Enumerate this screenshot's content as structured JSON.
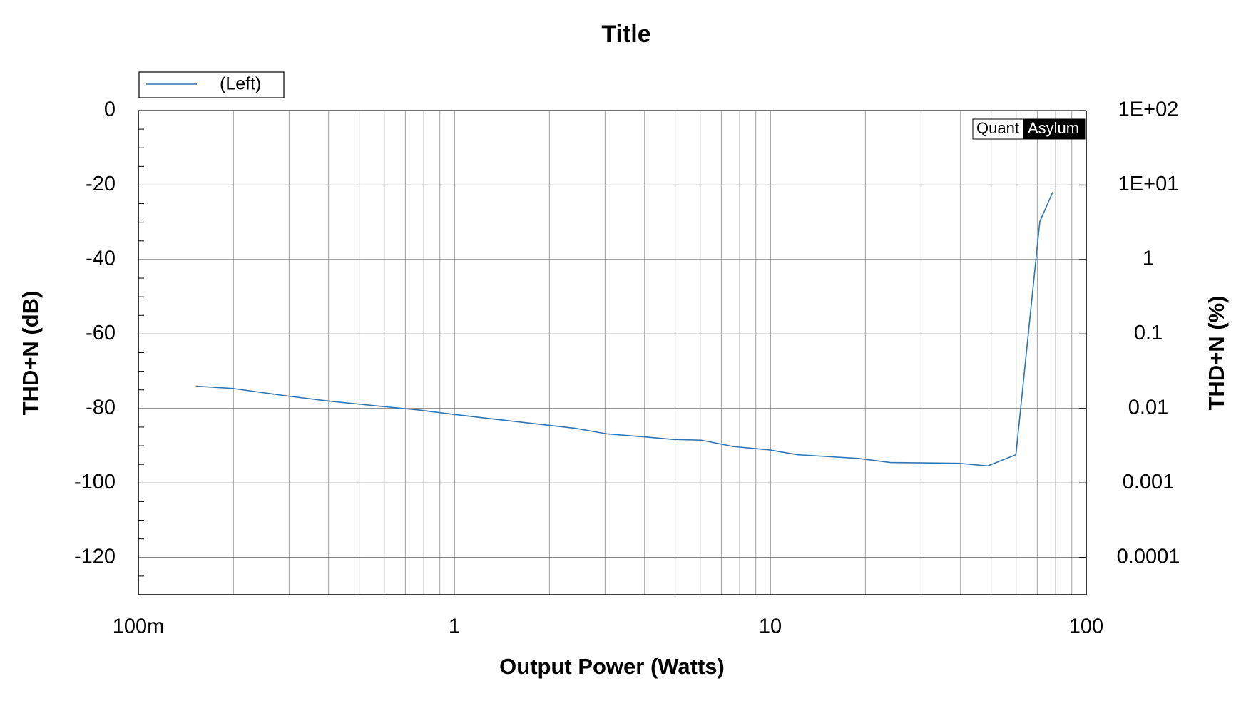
{
  "chart_data": {
    "type": "line",
    "title": "Title",
    "xlabel": "Output Power (Watts)",
    "ylabel": "THD+N (dB)",
    "y2label": "THD+N (%)",
    "xscale": "log",
    "y2scale": "log",
    "grid": true,
    "xlim": [
      0.1,
      100
    ],
    "xticks": [
      {
        "value": 0.1,
        "label": "100m"
      },
      1,
      10,
      100
    ],
    "x_minor_ticks": [
      0.2,
      0.3,
      0.4,
      0.5,
      0.6,
      0.7,
      0.8,
      0.9,
      2,
      3,
      4,
      5,
      6,
      7,
      8,
      9,
      20,
      30,
      40,
      50,
      60,
      70,
      80,
      90
    ],
    "ylim": [
      -130,
      0
    ],
    "yticks": [
      0,
      -20,
      -40,
      -60,
      -80,
      -100,
      -120
    ],
    "y_minor_ticks": [
      -5,
      -10,
      -15,
      -25,
      -30,
      -35,
      -45,
      -50,
      -55,
      -65,
      -70,
      -75,
      -85,
      -90,
      -95,
      -105,
      -110,
      -115,
      -125
    ],
    "y2lim": [
      3.16e-05,
      100
    ],
    "y2ticks": [
      {
        "value": 100,
        "label": "1E+02"
      },
      {
        "value": 10,
        "label": "1E+01"
      },
      1,
      0.1,
      0.01,
      0.001,
      0.0001
    ],
    "legend": "top-left",
    "watermark": {
      "left": "Quant",
      "right": "Asylum"
    },
    "series": [
      {
        "name": "(Left)",
        "color": "#2e75b6",
        "x": [
          0.152,
          0.198,
          0.3,
          0.4,
          0.6,
          0.77,
          1.0,
          1.29,
          2.41,
          3.04,
          3.98,
          4.93,
          6.05,
          7.63,
          9.92,
          12.2,
          19.0,
          24.0,
          39.4,
          48.8,
          59.9,
          71.3,
          78.3
        ],
        "values": [
          -74,
          -74.6,
          -76.7,
          -78,
          -79.5,
          -80.4,
          -81.6,
          -82.7,
          -85.3,
          -86.8,
          -87.6,
          -88.3,
          -88.5,
          -90.2,
          -91.1,
          -92.4,
          -93.4,
          -94.5,
          -94.7,
          -95.4,
          -92.4,
          -29.8,
          -21.9
        ]
      }
    ]
  }
}
